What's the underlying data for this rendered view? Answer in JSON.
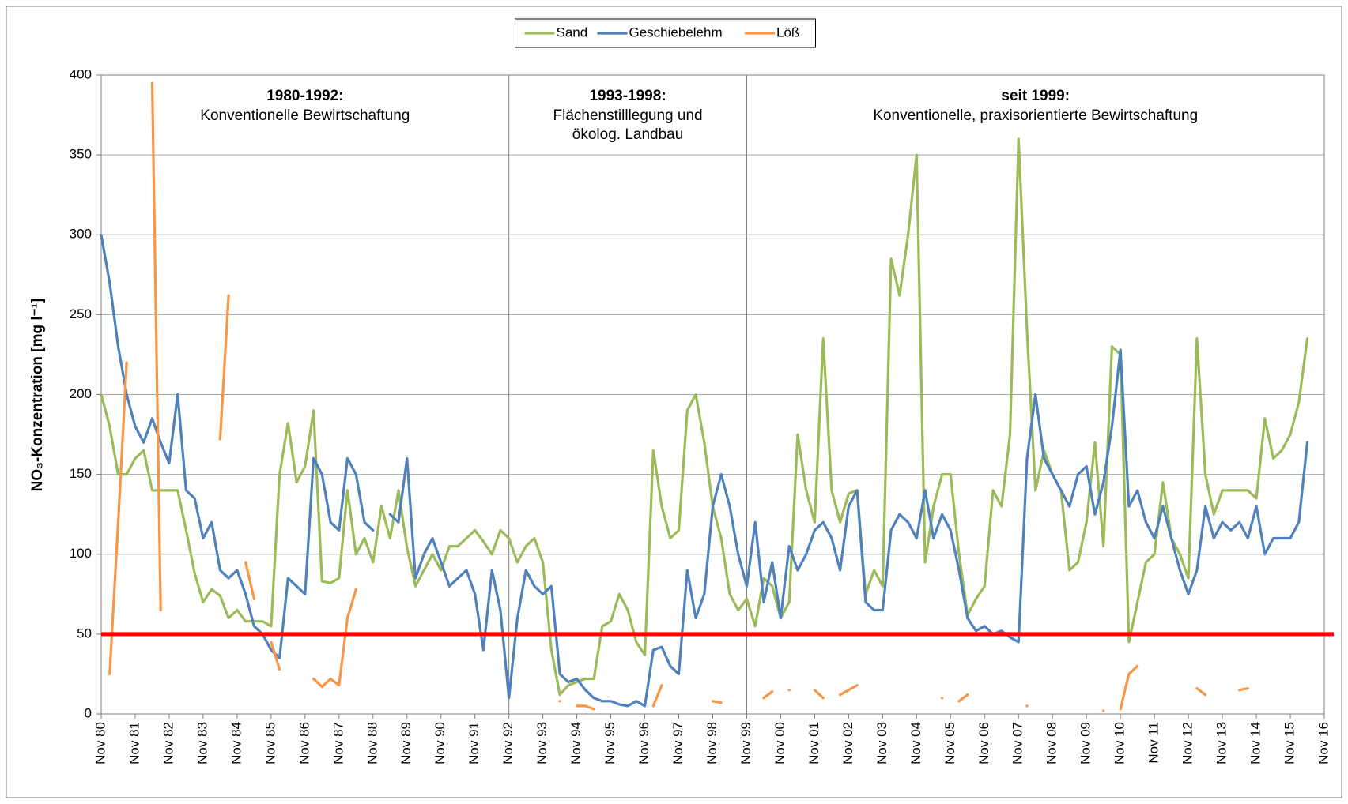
{
  "chart_data": {
    "type": "line",
    "ylabel": "NO₃-Konzentration [mg l⁻¹]",
    "ylim": [
      0,
      400
    ],
    "yticks": [
      0,
      50,
      100,
      150,
      200,
      250,
      300,
      350,
      400
    ],
    "xlim": [
      1980.83,
      2016.83
    ],
    "xticks": [
      {
        "value": 1980.83,
        "label": "Nov 80"
      },
      {
        "value": 1981.83,
        "label": "Nov 81"
      },
      {
        "value": 1982.83,
        "label": "Nov 82"
      },
      {
        "value": 1983.83,
        "label": "Nov 83"
      },
      {
        "value": 1984.83,
        "label": "Nov 84"
      },
      {
        "value": 1985.83,
        "label": "Nov 85"
      },
      {
        "value": 1986.83,
        "label": "Nov 86"
      },
      {
        "value": 1987.83,
        "label": "Nov 87"
      },
      {
        "value": 1988.83,
        "label": "Nov 88"
      },
      {
        "value": 1989.83,
        "label": "Nov 89"
      },
      {
        "value": 1990.83,
        "label": "Nov 90"
      },
      {
        "value": 1991.83,
        "label": "Nov 91"
      },
      {
        "value": 1992.83,
        "label": "Nov 92"
      },
      {
        "value": 1993.83,
        "label": "Nov 93"
      },
      {
        "value": 1994.83,
        "label": "Nov 94"
      },
      {
        "value": 1995.83,
        "label": "Nov 95"
      },
      {
        "value": 1996.83,
        "label": "Nov 96"
      },
      {
        "value": 1997.83,
        "label": "Nov 97"
      },
      {
        "value": 1998.83,
        "label": "Nov 98"
      },
      {
        "value": 1999.83,
        "label": "Nov 99"
      },
      {
        "value": 2000.83,
        "label": "Nov 00"
      },
      {
        "value": 2001.83,
        "label": "Nov 01"
      },
      {
        "value": 2002.83,
        "label": "Nov 02"
      },
      {
        "value": 2003.83,
        "label": "Nov 03"
      },
      {
        "value": 2004.83,
        "label": "Nov 04"
      },
      {
        "value": 2005.83,
        "label": "Nov 05"
      },
      {
        "value": 2006.83,
        "label": "Nov 06"
      },
      {
        "value": 2007.83,
        "label": "Nov 07"
      },
      {
        "value": 2008.83,
        "label": "Nov 08"
      },
      {
        "value": 2009.83,
        "label": "Nov 09"
      },
      {
        "value": 2010.83,
        "label": "Nov 10"
      },
      {
        "value": 2011.83,
        "label": "Nov 11"
      },
      {
        "value": 2012.83,
        "label": "Nov 12"
      },
      {
        "value": 2013.83,
        "label": "Nov 13"
      },
      {
        "value": 2014.83,
        "label": "Nov 14"
      },
      {
        "value": 2015.83,
        "label": "Nov 15"
      },
      {
        "value": 2016.83,
        "label": "Nov 16"
      }
    ],
    "grid": true,
    "legend": "top",
    "reference_line": {
      "value": 50,
      "color": "#ff0000"
    },
    "dividers": [
      1992.83,
      1999.83
    ],
    "annotations": [
      {
        "title": "1980-1992:",
        "lines": [
          "Konventionelle Bewirtschaftung"
        ]
      },
      {
        "title": "1993-1998:",
        "lines": [
          "Flächenstilllegung und",
          "ökolog. Landbau"
        ]
      },
      {
        "title": "seit 1999:",
        "lines": [
          "Konventionelle, praxisorientierte Bewirtschaftung"
        ]
      }
    ],
    "x": [
      1980.83,
      1981.08,
      1981.33,
      1981.58,
      1981.83,
      1982.08,
      1982.33,
      1982.58,
      1982.83,
      1983.08,
      1983.33,
      1983.58,
      1983.83,
      1984.08,
      1984.33,
      1984.58,
      1984.83,
      1985.08,
      1985.33,
      1985.58,
      1985.83,
      1986.08,
      1986.33,
      1986.58,
      1986.83,
      1987.08,
      1987.33,
      1987.58,
      1987.83,
      1988.08,
      1988.33,
      1988.58,
      1988.83,
      1989.08,
      1989.33,
      1989.58,
      1989.83,
      1990.08,
      1990.33,
      1990.58,
      1990.83,
      1991.08,
      1991.33,
      1991.58,
      1991.83,
      1992.08,
      1992.33,
      1992.58,
      1992.83,
      1993.08,
      1993.33,
      1993.58,
      1993.83,
      1994.08,
      1994.33,
      1994.58,
      1994.83,
      1995.08,
      1995.33,
      1995.58,
      1995.83,
      1996.08,
      1996.33,
      1996.58,
      1996.83,
      1997.08,
      1997.33,
      1997.58,
      1997.83,
      1998.08,
      1998.33,
      1998.58,
      1998.83,
      1999.08,
      1999.33,
      1999.58,
      1999.83,
      2000.08,
      2000.33,
      2000.58,
      2000.83,
      2001.08,
      2001.33,
      2001.58,
      2001.83,
      2002.08,
      2002.33,
      2002.58,
      2002.83,
      2003.08,
      2003.33,
      2003.58,
      2003.83,
      2004.08,
      2004.33,
      2004.58,
      2004.83,
      2005.08,
      2005.33,
      2005.58,
      2005.83,
      2006.08,
      2006.33,
      2006.58,
      2006.83,
      2007.08,
      2007.33,
      2007.58,
      2007.83,
      2008.08,
      2008.33,
      2008.58,
      2008.83,
      2009.08,
      2009.33,
      2009.58,
      2009.83,
      2010.08,
      2010.33,
      2010.58,
      2010.83,
      2011.08,
      2011.33,
      2011.58,
      2011.83,
      2012.08,
      2012.33,
      2012.58,
      2012.83,
      2013.08,
      2013.33,
      2013.58,
      2013.83,
      2014.08,
      2014.33,
      2014.58,
      2014.83,
      2015.08,
      2015.33,
      2015.58,
      2015.83,
      2016.08,
      2016.33
    ],
    "series": [
      {
        "name": "Sand",
        "color": "#9bbb59",
        "values": [
          200,
          180,
          150,
          150,
          160,
          165,
          140,
          140,
          140,
          140,
          115,
          88,
          70,
          78,
          74,
          60,
          65,
          58,
          58,
          58,
          55,
          150,
          182,
          145,
          155,
          190,
          83,
          82,
          85,
          140,
          100,
          110,
          95,
          130,
          110,
          140,
          104,
          80,
          90,
          100,
          90,
          105,
          105,
          110,
          115,
          108,
          100,
          115,
          110,
          95,
          105,
          110,
          95,
          40,
          12,
          18,
          20,
          22,
          22,
          55,
          58,
          75,
          65,
          45,
          37,
          165,
          130,
          110,
          115,
          190,
          200,
          170,
          130,
          110,
          75,
          65,
          72,
          55,
          85,
          80,
          60,
          70,
          175,
          140,
          120,
          235,
          140,
          120,
          138,
          140,
          75,
          90,
          80,
          285,
          262,
          300,
          350,
          95,
          130,
          150,
          150,
          100,
          62,
          72,
          80,
          140,
          130,
          175,
          360,
          240,
          140,
          165,
          150,
          140,
          90,
          95,
          120,
          170,
          105,
          230,
          225,
          45,
          70,
          95,
          100,
          145,
          110,
          100,
          85,
          235,
          150,
          125,
          140,
          140,
          140,
          140,
          135,
          185,
          160,
          165,
          175,
          195,
          235
        ]
      },
      {
        "name": "Geschiebelehm",
        "color": "#4f81bd",
        "values": [
          300,
          270,
          230,
          200,
          180,
          170,
          185,
          170,
          157,
          200,
          140,
          135,
          110,
          120,
          90,
          85,
          90,
          75,
          55,
          50,
          40,
          35,
          85,
          80,
          75,
          160,
          150,
          120,
          115,
          160,
          150,
          120,
          115,
          null,
          125,
          120,
          160,
          85,
          100,
          110,
          95,
          80,
          85,
          90,
          75,
          40,
          90,
          65,
          10,
          60,
          90,
          80,
          75,
          80,
          25,
          20,
          22,
          15,
          10,
          8,
          8,
          6,
          5,
          8,
          5,
          40,
          42,
          30,
          25,
          90,
          60,
          75,
          130,
          150,
          130,
          100,
          80,
          120,
          70,
          95,
          60,
          105,
          90,
          100,
          115,
          120,
          110,
          90,
          130,
          140,
          70,
          65,
          65,
          115,
          125,
          120,
          110,
          140,
          110,
          125,
          115,
          90,
          60,
          52,
          55,
          50,
          52,
          48,
          45,
          160,
          200,
          160,
          150,
          140,
          130,
          150,
          155,
          125,
          145,
          180,
          228,
          130,
          140,
          120,
          110,
          130,
          110,
          90,
          75,
          90,
          130,
          110,
          120,
          115,
          120,
          110,
          130,
          100,
          110,
          110,
          110,
          120,
          170
        ]
      },
      {
        "name": "Löß",
        "color": "#f79646",
        "values": [
          null,
          25,
          120,
          220,
          null,
          null,
          395,
          65,
          null,
          null,
          null,
          null,
          null,
          null,
          172,
          262,
          null,
          95,
          72,
          null,
          45,
          28,
          null,
          null,
          null,
          22,
          17,
          22,
          18,
          60,
          78,
          null,
          null,
          null,
          null,
          null,
          null,
          null,
          null,
          null,
          null,
          null,
          null,
          null,
          null,
          null,
          null,
          null,
          null,
          null,
          null,
          null,
          null,
          null,
          8,
          null,
          5,
          5,
          3,
          null,
          null,
          null,
          null,
          null,
          null,
          5,
          18,
          null,
          null,
          null,
          null,
          null,
          8,
          7,
          null,
          null,
          null,
          null,
          10,
          14,
          null,
          15,
          null,
          null,
          15,
          10,
          null,
          12,
          15,
          18,
          null,
          null,
          null,
          null,
          null,
          null,
          null,
          null,
          null,
          10,
          null,
          8,
          12,
          null,
          null,
          null,
          null,
          null,
          null,
          5,
          null,
          null,
          null,
          null,
          null,
          null,
          null,
          null,
          2,
          null,
          3,
          25,
          30,
          null,
          null,
          null,
          null,
          null,
          null,
          16,
          12,
          null,
          null,
          null,
          15,
          16,
          null,
          null,
          null,
          null,
          null,
          null,
          null
        ]
      }
    ]
  }
}
